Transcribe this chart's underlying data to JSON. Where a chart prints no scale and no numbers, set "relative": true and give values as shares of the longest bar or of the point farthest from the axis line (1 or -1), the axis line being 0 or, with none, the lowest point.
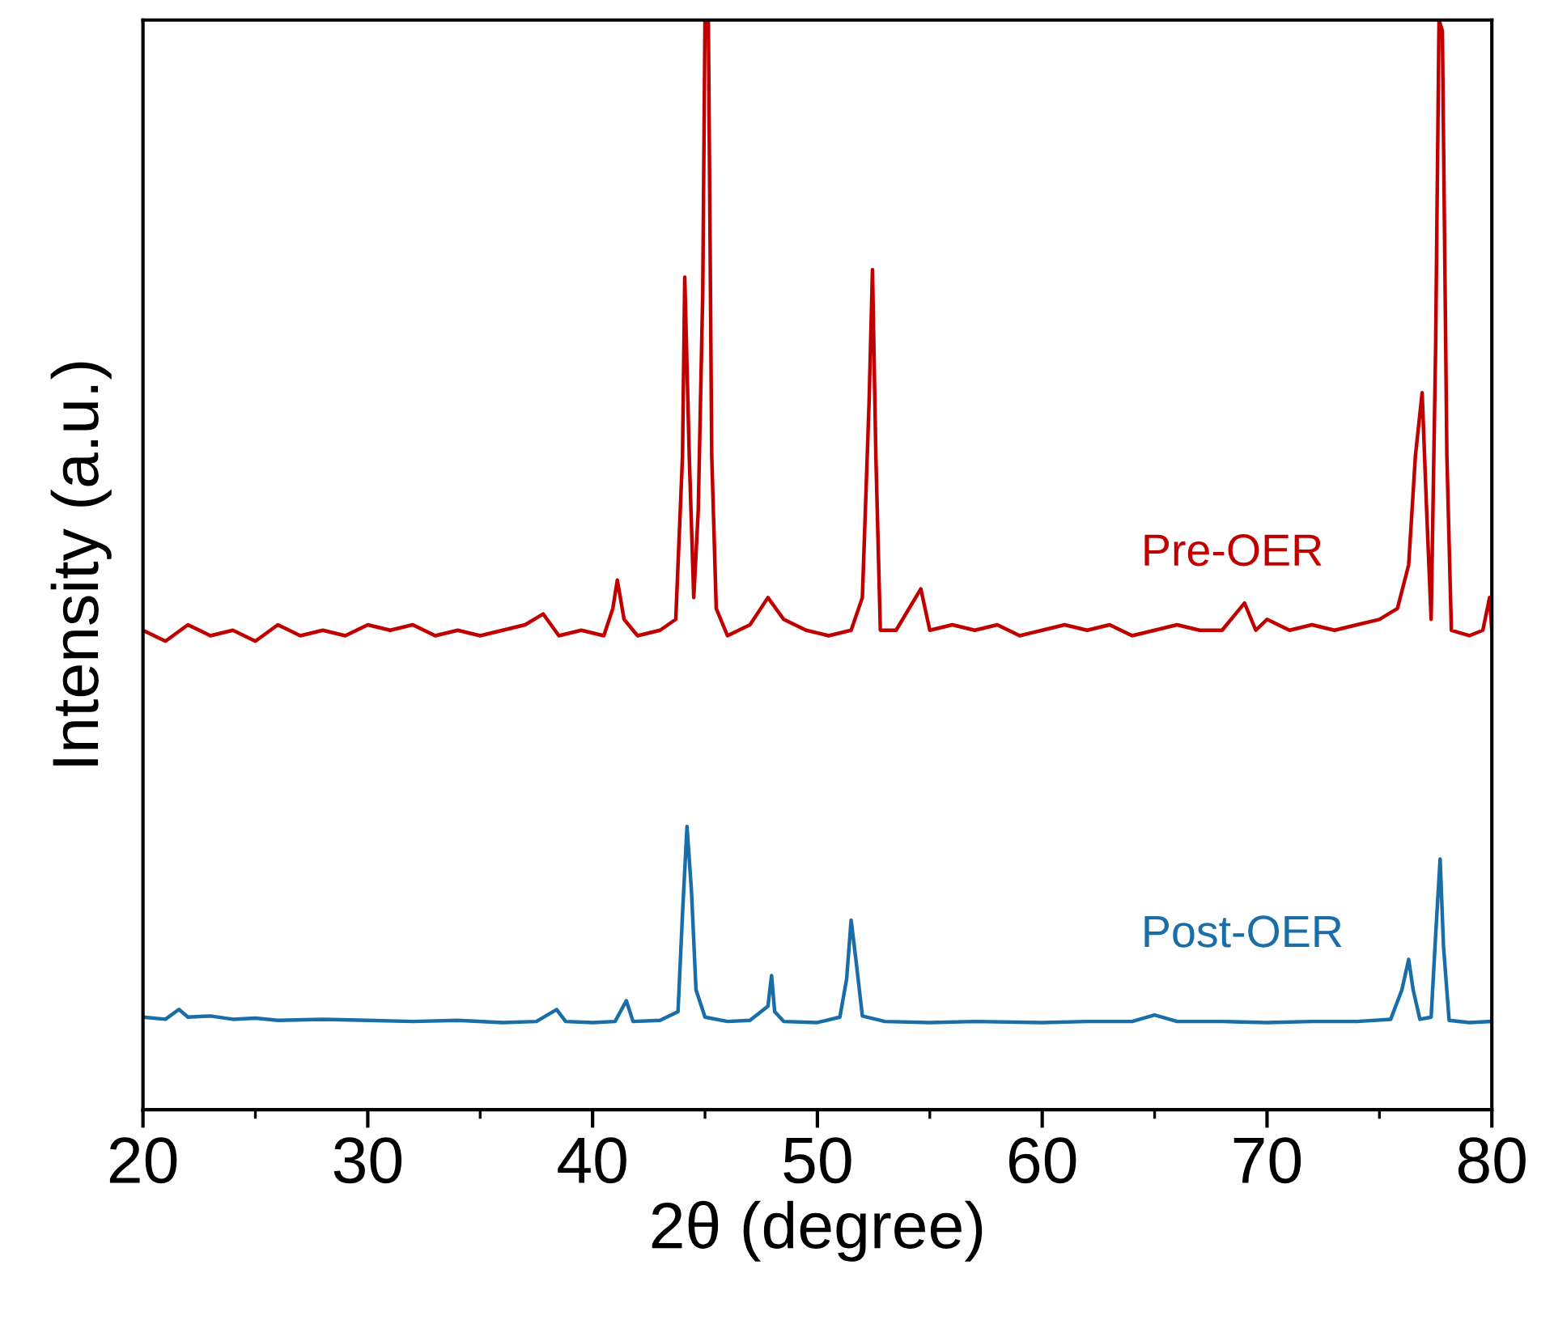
{
  "chart_data": {
    "type": "line",
    "relative": true,
    "xlabel": "2θ (degree)",
    "ylabel": "Intensity (a.u.)",
    "xlim": [
      20,
      80
    ],
    "xticks": [
      20,
      30,
      40,
      50,
      60,
      70,
      80
    ],
    "tick_labels": "x",
    "grid": false,
    "legend": false,
    "marker": "none",
    "line_style": "solid",
    "series": [
      {
        "name": "Pre-OER",
        "color": "#c00000",
        "x": [
          20,
          21,
          22,
          23,
          24,
          25,
          26,
          27,
          28,
          29,
          30,
          31,
          32,
          33,
          34,
          35,
          36,
          37,
          37.8,
          38.5,
          39.5,
          40.5,
          40.9,
          41.1,
          41.4,
          42,
          43,
          43.7,
          44.0,
          44.1,
          44.3,
          44.5,
          44.7,
          44.9,
          45.0,
          45.15,
          45.3,
          45.5,
          46,
          47,
          47.8,
          48.5,
          49.5,
          50.5,
          51.5,
          52.0,
          52.3,
          52.45,
          52.6,
          52.8,
          53.5,
          54.6,
          55,
          56,
          57,
          58,
          59,
          60,
          61,
          62,
          63,
          64,
          65,
          66,
          67,
          68,
          69,
          69.5,
          70,
          71,
          72,
          73,
          74,
          75,
          75.8,
          76.3,
          76.6,
          76.9,
          77.1,
          77.3,
          77.5,
          77.65,
          77.8,
          78.0,
          78.2,
          79,
          79.6,
          79.9,
          80
        ],
        "values": [
          0.44,
          0.43,
          0.445,
          0.435,
          0.44,
          0.43,
          0.445,
          0.435,
          0.44,
          0.435,
          0.445,
          0.44,
          0.445,
          0.435,
          0.44,
          0.435,
          0.44,
          0.445,
          0.455,
          0.435,
          0.44,
          0.435,
          0.46,
          0.486,
          0.45,
          0.435,
          0.44,
          0.45,
          0.6,
          0.764,
          0.6,
          0.47,
          0.55,
          0.75,
          1.0,
          1.0,
          0.6,
          0.46,
          0.435,
          0.445,
          0.47,
          0.45,
          0.44,
          0.435,
          0.44,
          0.47,
          0.65,
          0.771,
          0.6,
          0.44,
          0.44,
          0.478,
          0.44,
          0.445,
          0.44,
          0.445,
          0.435,
          0.44,
          0.445,
          0.44,
          0.445,
          0.435,
          0.44,
          0.445,
          0.44,
          0.44,
          0.465,
          0.44,
          0.45,
          0.44,
          0.445,
          0.44,
          0.445,
          0.45,
          0.46,
          0.5,
          0.6,
          0.658,
          0.55,
          0.45,
          0.7,
          1.0,
          0.99,
          0.6,
          0.44,
          0.435,
          0.44,
          0.47,
          0.44
        ]
      },
      {
        "name": "Post-OER",
        "color": "#1a6ea8",
        "x": [
          20,
          21,
          21.6,
          22,
          23,
          24,
          25,
          26,
          28,
          30,
          32,
          34,
          36,
          37.5,
          38.4,
          38.8,
          40,
          41,
          41.5,
          41.8,
          43,
          43.8,
          44.0,
          44.2,
          44.4,
          44.6,
          45,
          46,
          47,
          47.8,
          47.96,
          48.1,
          48.5,
          50,
          51,
          51.3,
          51.5,
          51.7,
          52,
          53,
          55,
          57,
          60,
          62,
          64,
          65,
          66,
          68,
          70,
          72,
          74,
          75.5,
          76.0,
          76.3,
          76.5,
          76.8,
          77.3,
          77.5,
          77.7,
          77.85,
          78.1,
          79,
          80
        ],
        "values": [
          0.085,
          0.083,
          0.092,
          0.085,
          0.086,
          0.083,
          0.084,
          0.082,
          0.083,
          0.082,
          0.081,
          0.082,
          0.08,
          0.081,
          0.092,
          0.081,
          0.08,
          0.081,
          0.1,
          0.081,
          0.082,
          0.09,
          0.18,
          0.26,
          0.2,
          0.11,
          0.085,
          0.081,
          0.082,
          0.095,
          0.123,
          0.09,
          0.081,
          0.08,
          0.085,
          0.12,
          0.174,
          0.14,
          0.086,
          0.081,
          0.08,
          0.081,
          0.08,
          0.081,
          0.081,
          0.087,
          0.081,
          0.081,
          0.08,
          0.081,
          0.081,
          0.083,
          0.11,
          0.138,
          0.11,
          0.083,
          0.085,
          0.16,
          0.23,
          0.15,
          0.082,
          0.08,
          0.081
        ]
      }
    ]
  }
}
